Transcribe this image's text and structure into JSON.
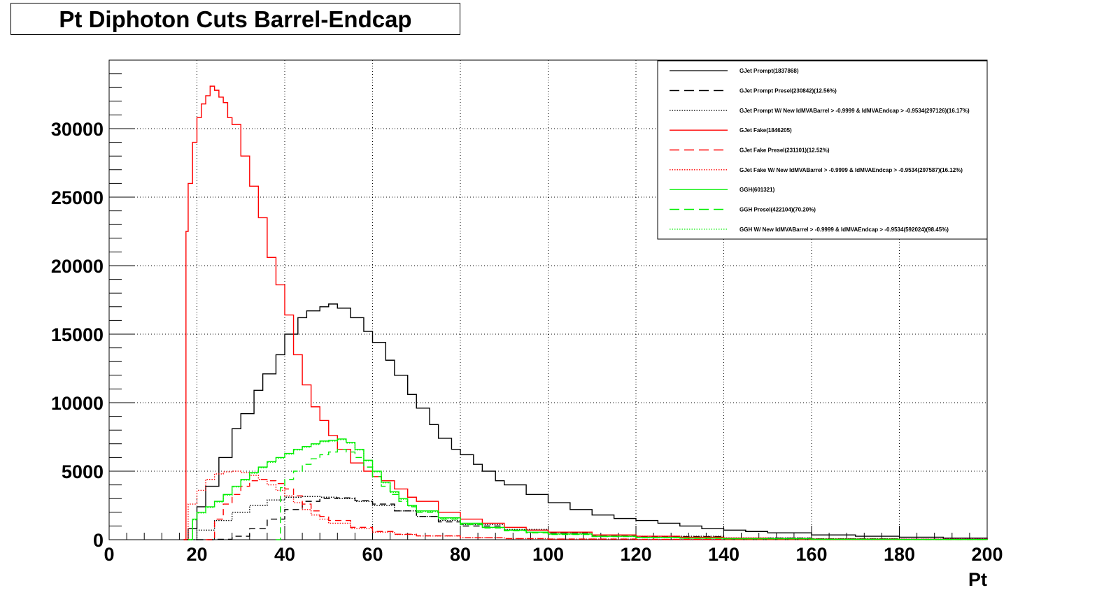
{
  "title": "Pt Diphoton Cuts Barrel-Endcap",
  "chart_data": {
    "type": "line",
    "title": "Pt Diphoton Cuts Barrel-Endcap",
    "xlabel": "Pt",
    "ylabel": "",
    "xlim": [
      0,
      200
    ],
    "ylim": [
      0,
      35000
    ],
    "grid": true,
    "legend_position": "top-right",
    "x_ticks": [
      "0",
      "20",
      "40",
      "60",
      "80",
      "100",
      "120",
      "140",
      "160",
      "180",
      "200"
    ],
    "y_ticks": [
      "0",
      "5000",
      "10000",
      "15000",
      "20000",
      "25000",
      "30000"
    ],
    "series": [
      {
        "name": "GJet Prompt(1837868)",
        "color": "#000000",
        "style": "solid",
        "x": [
          17,
          18,
          20,
          22,
          25,
          28,
          30,
          33,
          35,
          38,
          40,
          43,
          45,
          48,
          50,
          52,
          55,
          58,
          60,
          63,
          65,
          68,
          70,
          73,
          75,
          78,
          80,
          83,
          85,
          88,
          90,
          95,
          100,
          105,
          110,
          115,
          120,
          125,
          130,
          135,
          140,
          145,
          150,
          160,
          170,
          180,
          190,
          200
        ],
        "y": [
          0,
          800,
          2400,
          3900,
          6000,
          8100,
          9200,
          10900,
          12100,
          13500,
          15000,
          16200,
          16700,
          17000,
          17200,
          16900,
          16200,
          15200,
          14400,
          13100,
          12000,
          10600,
          9600,
          8400,
          7400,
          6600,
          6200,
          5500,
          5000,
          4300,
          4000,
          3300,
          2700,
          2200,
          1800,
          1550,
          1400,
          1200,
          1000,
          800,
          700,
          600,
          500,
          350,
          250,
          180,
          120,
          80
        ]
      },
      {
        "name": "GJet Prompt Presel(230842)(12.56%)",
        "color": "#000000",
        "style": "dashed",
        "x": [
          20,
          24,
          28,
          32,
          36,
          40,
          44,
          48,
          52,
          56,
          60,
          65,
          70,
          75,
          80,
          90,
          100,
          110,
          120,
          140,
          160,
          180,
          200
        ],
        "y": [
          0,
          30,
          250,
          800,
          1500,
          2200,
          2800,
          3000,
          3050,
          2850,
          2600,
          2100,
          1700,
          1300,
          1000,
          700,
          500,
          330,
          220,
          120,
          60,
          30,
          15
        ]
      },
      {
        "name": "GJet Prompt W/ New IdMVABarrel > -0.9999 & IdMVAEndcap > -0.9534(297126)(16.17%)",
        "color": "#000000",
        "style": "dotted",
        "x": [
          17,
          20,
          24,
          28,
          32,
          36,
          40,
          44,
          48,
          52,
          56,
          60,
          65,
          70,
          75,
          80,
          90,
          100,
          110,
          120,
          140,
          160,
          180,
          200
        ],
        "y": [
          0,
          700,
          1400,
          2000,
          2500,
          2900,
          3100,
          3150,
          3100,
          3000,
          2800,
          2500,
          2100,
          1700,
          1400,
          1100,
          750,
          520,
          350,
          250,
          130,
          70,
          40,
          20
        ]
      },
      {
        "name": "GJet Fake(1846205)",
        "color": "#ff0000",
        "style": "solid",
        "x": [
          17,
          17.5,
          18,
          19,
          20,
          21,
          22,
          23,
          24,
          25,
          26,
          27,
          28,
          30,
          32,
          34,
          36,
          38,
          40,
          42,
          44,
          46,
          48,
          50,
          52,
          55,
          58,
          60,
          62,
          65,
          68,
          70,
          75,
          80,
          85,
          90,
          95,
          100,
          110,
          120,
          130,
          140,
          150,
          160,
          180,
          200
        ],
        "y": [
          0,
          22500,
          26000,
          29000,
          30800,
          31800,
          32400,
          33100,
          32800,
          32300,
          31900,
          30800,
          30300,
          28000,
          25800,
          23500,
          20600,
          18600,
          16400,
          13500,
          11300,
          9700,
          8700,
          7600,
          6600,
          5600,
          5000,
          4600,
          4300,
          3700,
          3100,
          2800,
          2000,
          1500,
          1200,
          900,
          700,
          550,
          350,
          250,
          180,
          120,
          80,
          50,
          25,
          10
        ]
      },
      {
        "name": "GJet Fake Presel(231101)(12.52%)",
        "color": "#ff0000",
        "style": "dashed",
        "x": [
          22,
          24,
          26,
          28,
          30,
          32,
          34,
          36,
          38,
          40,
          42,
          44,
          46,
          48,
          50,
          55,
          60,
          65,
          70,
          80,
          90,
          100,
          120,
          140,
          160,
          200
        ],
        "y": [
          0,
          1500,
          2600,
          3300,
          3900,
          4300,
          4400,
          4300,
          4100,
          3700,
          3200,
          2600,
          2100,
          1700,
          1400,
          900,
          600,
          400,
          280,
          140,
          80,
          50,
          20,
          10,
          5,
          2
        ]
      },
      {
        "name": "GJet Fake W/ New IdMVABarrel > -0.9999 & IdMVAEndcap > -0.9534(297587)(16.12%)",
        "color": "#ff0000",
        "style": "dotted",
        "x": [
          17,
          18,
          20,
          22,
          24,
          26,
          28,
          30,
          32,
          34,
          36,
          38,
          40,
          42,
          44,
          46,
          48,
          50,
          55,
          60,
          65,
          70,
          80,
          90,
          100,
          120,
          140,
          160,
          200
        ],
        "y": [
          0,
          2600,
          3600,
          4400,
          4800,
          4950,
          5000,
          4900,
          4700,
          4400,
          4000,
          3600,
          3200,
          2700,
          2200,
          1800,
          1500,
          1200,
          800,
          550,
          380,
          270,
          140,
          80,
          50,
          20,
          10,
          5,
          2
        ]
      },
      {
        "name": "GGH(601321)",
        "color": "#00ee00",
        "style": "solid",
        "x": [
          18,
          19,
          20,
          22,
          24,
          26,
          28,
          30,
          32,
          34,
          36,
          38,
          40,
          42,
          44,
          46,
          48,
          50,
          52,
          54,
          56,
          58,
          60,
          62,
          64,
          66,
          68,
          70,
          75,
          80,
          85,
          90,
          95,
          100,
          110,
          120,
          130,
          140,
          160,
          180,
          200
        ],
        "y": [
          0,
          1500,
          2000,
          2400,
          2800,
          3300,
          3900,
          4400,
          4900,
          5300,
          5700,
          6000,
          6300,
          6600,
          6800,
          7000,
          7200,
          7250,
          7350,
          7100,
          6600,
          5800,
          5000,
          4200,
          3500,
          3000,
          2500,
          2100,
          1600,
          1200,
          900,
          700,
          550,
          420,
          250,
          170,
          110,
          70,
          30,
          15,
          8
        ]
      },
      {
        "name": "GGH Presel(422104)(70.20%)",
        "color": "#00ee00",
        "style": "dashed",
        "x": [
          38,
          39,
          40,
          42,
          44,
          46,
          48,
          50,
          52,
          54,
          56,
          58,
          60,
          62,
          64,
          66,
          68,
          70,
          75,
          80,
          85,
          90,
          95,
          100,
          110,
          120,
          130,
          140,
          160,
          180,
          200
        ],
        "y": [
          0,
          3800,
          4400,
          5000,
          5500,
          5900,
          6200,
          6400,
          6600,
          6400,
          6000,
          5300,
          4600,
          3900,
          3300,
          2800,
          2400,
          2000,
          1500,
          1100,
          850,
          650,
          500,
          380,
          230,
          150,
          100,
          65,
          28,
          13,
          7
        ]
      },
      {
        "name": "GGH W/ New IdMVABarrel > -0.9999 & IdMVAEndcap > -0.9534(592024)(98.45%)",
        "color": "#00ee00",
        "style": "dotted",
        "x": [
          18,
          19,
          20,
          22,
          24,
          26,
          28,
          30,
          32,
          34,
          36,
          38,
          40,
          42,
          44,
          46,
          48,
          50,
          52,
          54,
          56,
          58,
          60,
          62,
          64,
          66,
          68,
          70,
          75,
          80,
          85,
          90,
          95,
          100,
          110,
          120,
          130,
          140,
          160,
          180,
          200
        ],
        "y": [
          0,
          1450,
          1950,
          2350,
          2750,
          3250,
          3850,
          4350,
          4850,
          5250,
          5650,
          5950,
          6250,
          6550,
          6750,
          6950,
          7150,
          7200,
          7300,
          7050,
          6550,
          5750,
          4950,
          4150,
          3450,
          2950,
          2450,
          2050,
          1550,
          1150,
          880,
          680,
          530,
          400,
          240,
          160,
          105,
          68,
          29,
          14,
          7
        ]
      }
    ]
  }
}
